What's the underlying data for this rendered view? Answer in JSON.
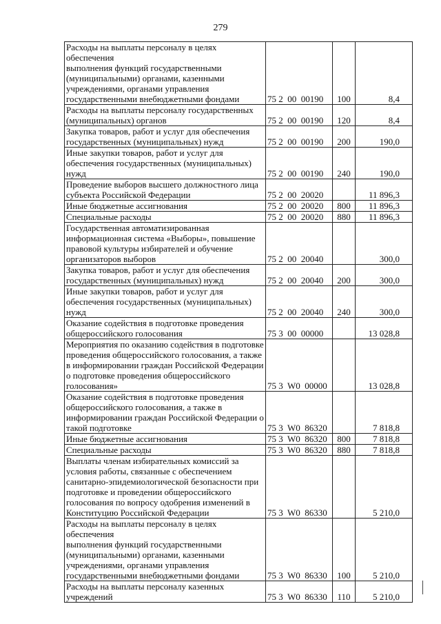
{
  "page_number": "279",
  "rows": [
    {
      "desc": "Расходы на выплаты персоналу в целях обеспечения\nвыполнения функций государственными\n(муниципальными) органами, казенными\nучреждениями, органами управления\nгосударственными внебюджетными фондами",
      "code": "75 2  00  00190",
      "type": "100",
      "amount": "8,4"
    },
    {
      "desc": "Расходы на выплаты персоналу государственных\n(муниципальных) органов",
      "code": "75 2  00  00190",
      "type": "120",
      "amount": "8,4"
    },
    {
      "desc": "Закупка товаров, работ и услуг для обеспечения\nгосударственных (муниципальных) нужд",
      "code": "75 2  00  00190",
      "type": "200",
      "amount": "190,0"
    },
    {
      "desc": "Иные закупки товаров, работ и услуг для\nобеспечения государственных (муниципальных)\nнужд",
      "code": "75 2  00  00190",
      "type": "240",
      "amount": "190,0"
    },
    {
      "desc": "Проведение выборов высшего должностного лица\nсубъекта Российской Федерации",
      "code": "75 2  00  20020",
      "type": "",
      "amount": "11 896,3"
    },
    {
      "desc": "Иные бюджетные ассигнования",
      "code": "75 2  00  20020",
      "type": "800",
      "amount": "11 896,3"
    },
    {
      "desc": "Специальные расходы",
      "code": "75 2  00  20020",
      "type": "880",
      "amount": "11 896,3"
    },
    {
      "desc": "Государственная автоматизированная\nинформационная система «Выборы», повышение\nправовой культуры избирателей и обучение\nорганизаторов выборов",
      "code": "75 2  00  20040",
      "type": "",
      "amount": "300,0"
    },
    {
      "desc": "Закупка товаров, работ и услуг для обеспечения\nгосударственных (муниципальных) нужд",
      "code": "75 2  00  20040",
      "type": "200",
      "amount": "300,0"
    },
    {
      "desc": "Иные закупки товаров, работ и услуг для\nобеспечения государственных (муниципальных)\nнужд",
      "code": "75 2  00  20040",
      "type": "240",
      "amount": "300,0"
    },
    {
      "desc": "Оказание содействия в подготовке проведения\nобщероссийского голосования",
      "code": "75 3  00  00000",
      "type": "",
      "amount": "13 028,8"
    },
    {
      "desc": "Мероприятия по оказанию содействия в подготовке\nпроведения общероссийского голосования, а также\nв информировании граждан Российской Федерации\nо подготовке проведения общероссийского\nголосования»",
      "code": "75 3  W0  00000",
      "type": "",
      "amount": "13 028,8"
    },
    {
      "desc": "Оказание содействия в подготовке проведения\nобщероссийского голосования, а также в\nинформировании граждан Российской Федерации о\nтакой подготовке",
      "code": "75 3  W0  86320",
      "type": "",
      "amount": "7 818,8"
    },
    {
      "desc": "Иные бюджетные ассигнования",
      "code": "75 3  W0  86320",
      "type": "800",
      "amount": "7 818,8"
    },
    {
      "desc": "Специальные расходы",
      "code": "75 3  W0  86320",
      "type": "880",
      "amount": "7 818,8"
    },
    {
      "desc": "Выплаты членам избирательных комиссий за\nусловия работы, связанные с обеспечением\nсанитарно-эпидемиологической безопасности при\nподготовке и проведении общероссийского\nголосования по вопросу одобрения изменений в\nКонституцию Российской Федерации",
      "code": "75 3  W0  86330",
      "type": "",
      "amount": "5 210,0"
    },
    {
      "desc": "Расходы на выплаты персоналу в целях обеспечения\nвыполнения функций государственными\n(муниципальными) органами, казенными\nучреждениями, органами управления\nгосударственными внебюджетными фондами",
      "code": "75 3  W0  86330",
      "type": "100",
      "amount": "5 210,0"
    },
    {
      "desc": "Расходы на выплаты персоналу казенных\nучреждений",
      "code": "75 3  W0  86330",
      "type": "110",
      "amount": "5 210,0"
    }
  ]
}
